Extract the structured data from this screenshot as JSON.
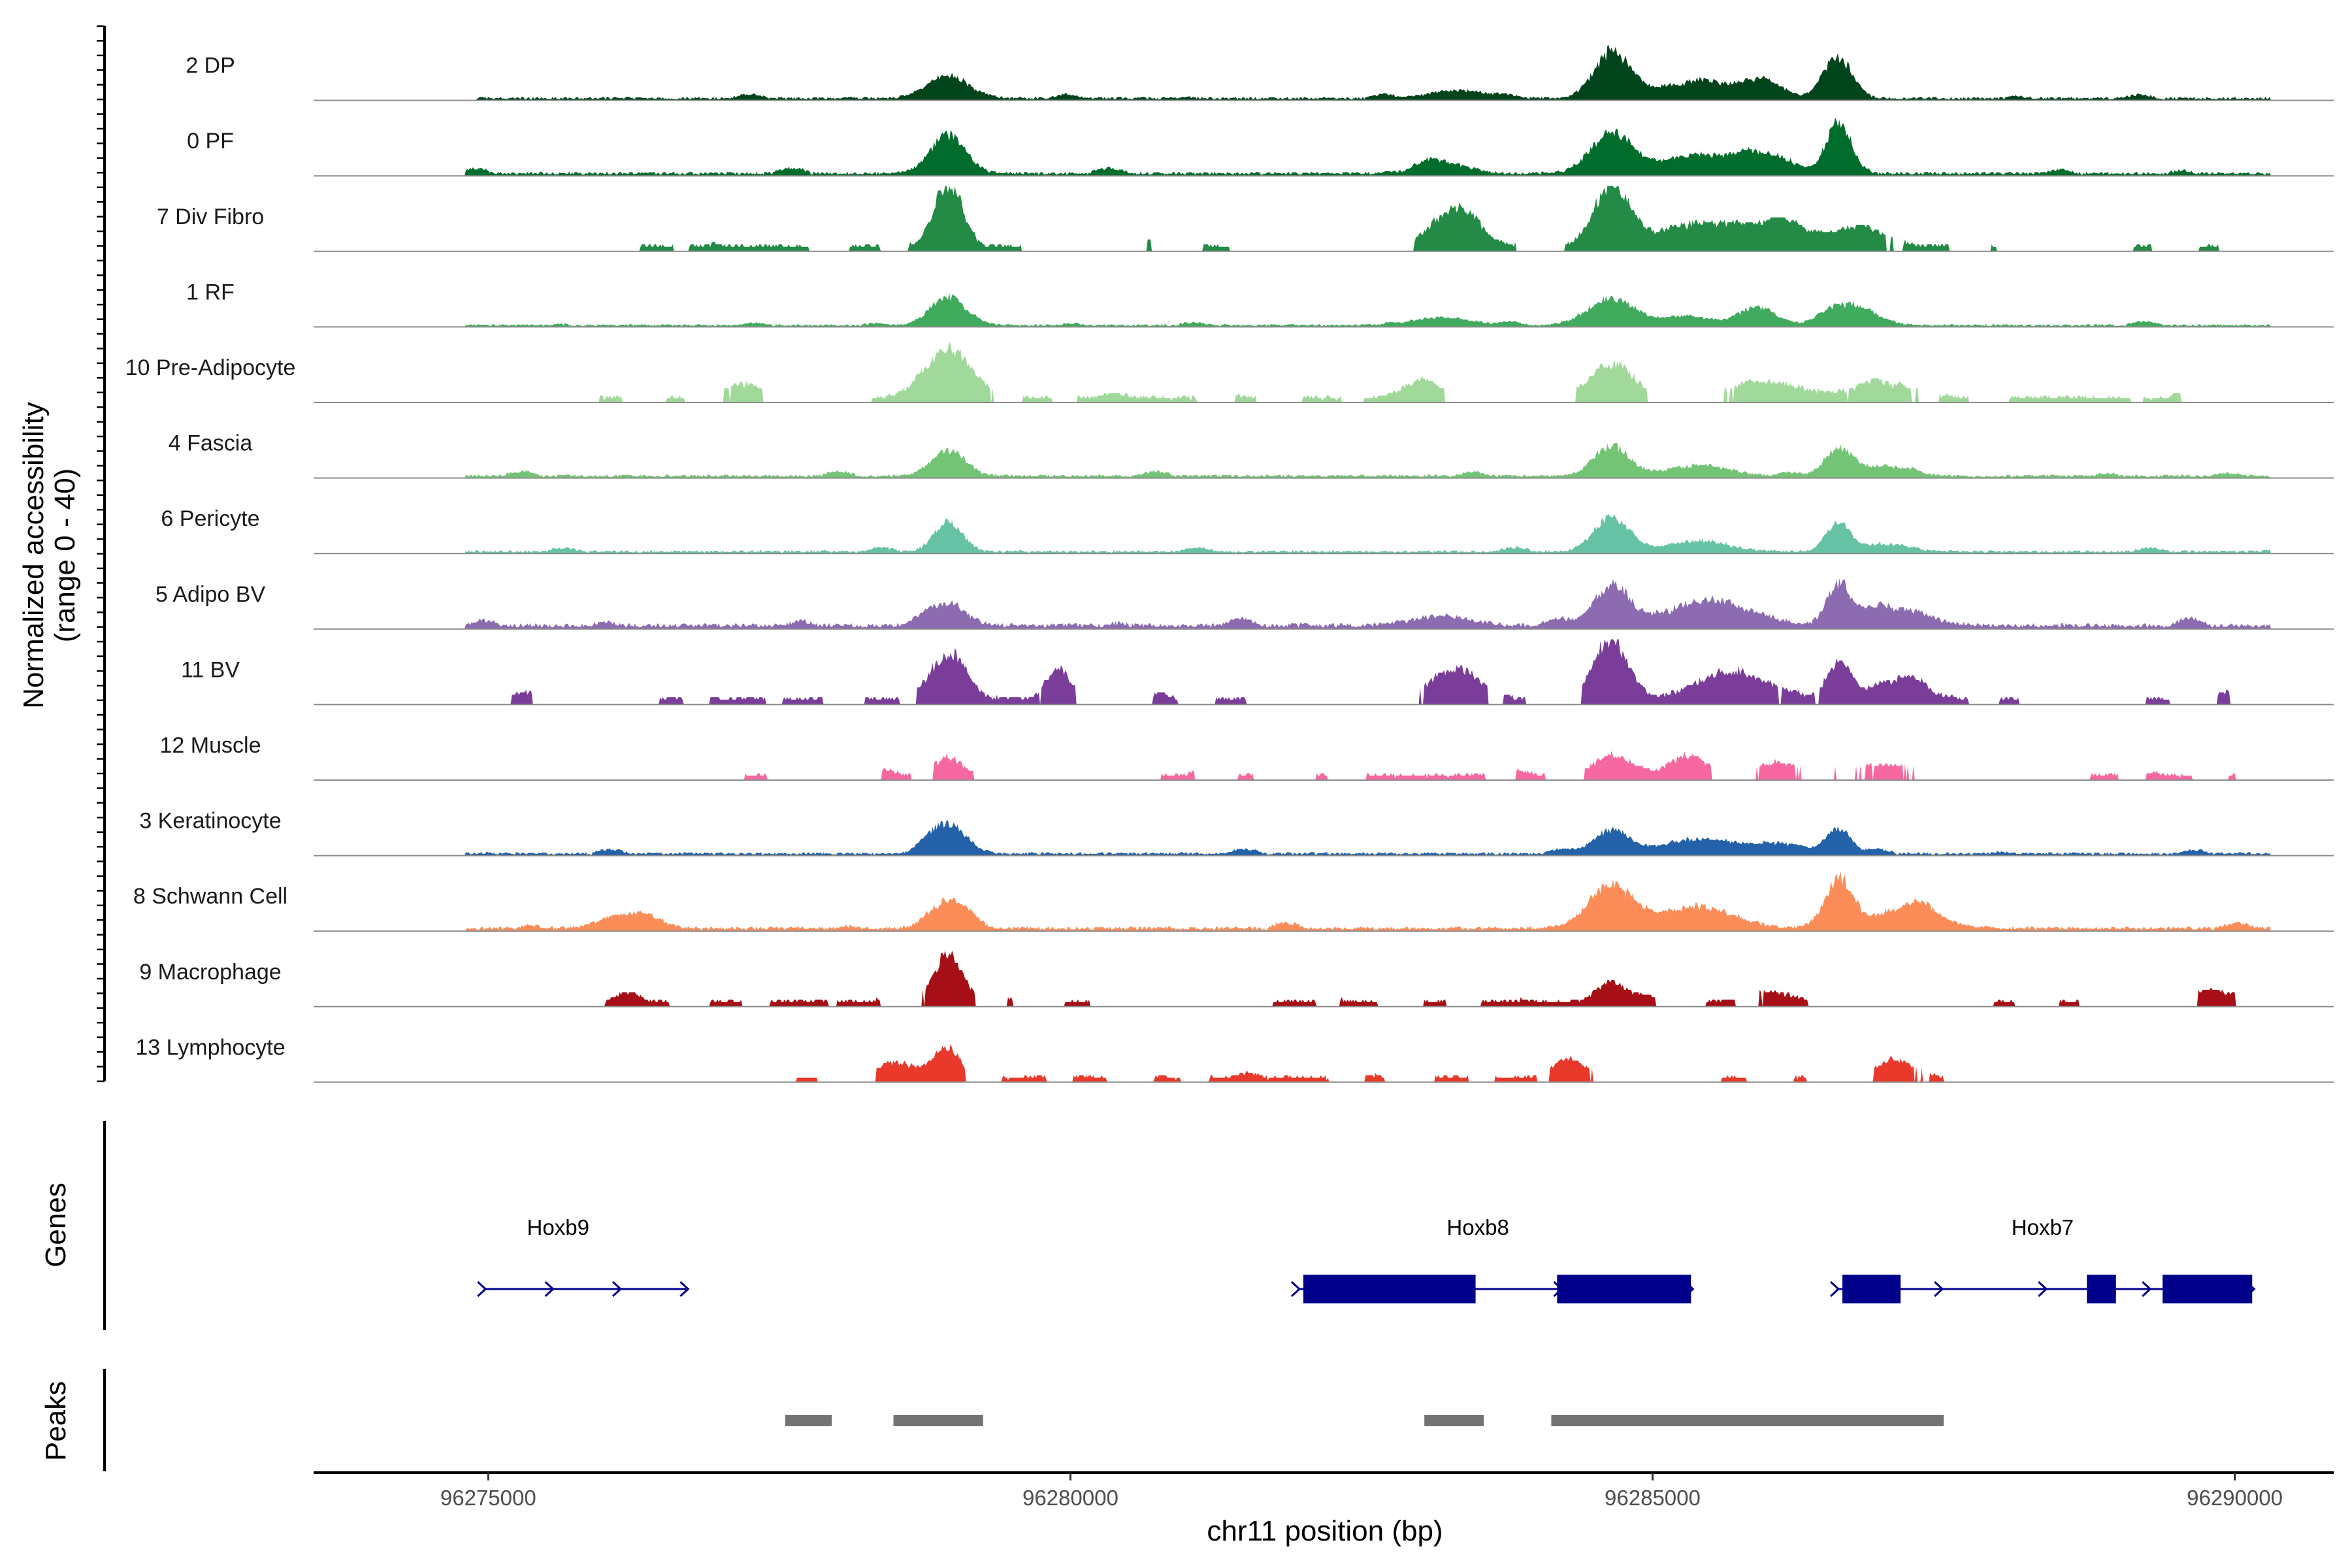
{
  "chart_data": {
    "type": "area",
    "title": "",
    "chromosome": "chr11",
    "xlabel": "chr11 position (bp)",
    "ylabel": "Normalized accessibility",
    "ylabel_range": "(range 0 - 40)",
    "ylim": [
      0,
      40
    ],
    "xlim": [
      96273500,
      96290850
    ],
    "x_ticks": [
      96275000,
      96280000,
      96285000,
      96290000
    ],
    "x_tick_labels": [
      "96275000",
      "96280000",
      "96285000",
      "96290000"
    ],
    "tracks": [
      {
        "name": "2 DP",
        "color": "#00441b",
        "start": 96274900,
        "end": 96290300,
        "base": 1.5,
        "peaks": [
          [
            96278950,
            180,
            14
          ],
          [
            96283350,
            250,
            5
          ],
          [
            96284650,
            150,
            28
          ],
          [
            96285400,
            400,
            10
          ],
          [
            96286600,
            120,
            25
          ],
          [
            96285950,
            150,
            9
          ]
        ]
      },
      {
        "name": "0 PF",
        "color": "#006d2c",
        "start": 96274800,
        "end": 96290300,
        "base": 1.8,
        "peaks": [
          [
            96278950,
            150,
            24
          ],
          [
            96283200,
            200,
            7
          ],
          [
            96284650,
            180,
            25
          ],
          [
            96285400,
            300,
            12
          ],
          [
            96286000,
            200,
            11
          ],
          [
            96286600,
            100,
            34
          ]
        ]
      },
      {
        "name": "7 Div Fibro",
        "color": "#238b45",
        "start": 96276100,
        "end": 96290300,
        "base": 2.2,
        "gappy": true,
        "peaks": [
          [
            96278950,
            120,
            40
          ],
          [
            96283300,
            200,
            22
          ],
          [
            96284650,
            150,
            38
          ],
          [
            96285400,
            350,
            14
          ],
          [
            96286100,
            300,
            12
          ],
          [
            96286800,
            200,
            12
          ]
        ]
      },
      {
        "name": "1 RF",
        "color": "#41ab5d",
        "start": 96274800,
        "end": 96290300,
        "base": 1.2,
        "peaks": [
          [
            96278950,
            150,
            18
          ],
          [
            96283200,
            250,
            5
          ],
          [
            96284650,
            200,
            17
          ],
          [
            96285900,
            150,
            12
          ],
          [
            96286700,
            200,
            13
          ],
          [
            96285300,
            200,
            6
          ]
        ]
      },
      {
        "name": "10 Pre-Adipocyte",
        "color": "#a1d99b",
        "start": 96275000,
        "end": 96290300,
        "base": 2.0,
        "gappy": true,
        "peaks": [
          [
            96278950,
            200,
            31
          ],
          [
            96284650,
            180,
            22
          ],
          [
            96283000,
            150,
            10
          ],
          [
            96286000,
            300,
            10
          ],
          [
            96287000,
            250,
            9
          ],
          [
            96277200,
            150,
            9
          ]
        ]
      },
      {
        "name": "4 Fascia",
        "color": "#74c476",
        "start": 96274800,
        "end": 96290300,
        "base": 1.5,
        "peaks": [
          [
            96278950,
            150,
            16
          ],
          [
            96284650,
            150,
            19
          ],
          [
            96285400,
            250,
            7
          ],
          [
            96286600,
            120,
            17
          ],
          [
            96287000,
            200,
            6
          ]
        ]
      },
      {
        "name": "6 Pericyte",
        "color": "#66c2a4",
        "start": 96274800,
        "end": 96290300,
        "base": 1.4,
        "peaks": [
          [
            96278950,
            120,
            18
          ],
          [
            96284650,
            150,
            22
          ],
          [
            96285400,
            250,
            7
          ],
          [
            96286600,
            100,
            16
          ],
          [
            96287000,
            200,
            5
          ]
        ]
      },
      {
        "name": "5 Adipo BV",
        "color": "#8c6bb1",
        "start": 96274800,
        "end": 96290300,
        "base": 2.5,
        "peaks": [
          [
            96278950,
            150,
            14
          ],
          [
            96284650,
            150,
            25
          ],
          [
            96285500,
            350,
            16
          ],
          [
            96286600,
            100,
            26
          ],
          [
            96287100,
            250,
            11
          ],
          [
            96283200,
            250,
            6
          ]
        ]
      },
      {
        "name": "11 BV",
        "color": "#7a3d99",
        "start": 96274800,
        "end": 96290300,
        "base": 2.5,
        "gappy": true,
        "peaks": [
          [
            96278950,
            150,
            28
          ],
          [
            96284650,
            150,
            34
          ],
          [
            96285700,
            300,
            17
          ],
          [
            96286600,
            100,
            24
          ],
          [
            96287100,
            200,
            12
          ],
          [
            96283300,
            200,
            18
          ],
          [
            96279900,
            100,
            19
          ]
        ]
      },
      {
        "name": "12 Muscle",
        "color": "#f768a1",
        "start": 96277200,
        "end": 96290000,
        "base": 2.0,
        "gappy": true,
        "peaks": [
          [
            96278950,
            120,
            11
          ],
          [
            96284650,
            150,
            13
          ],
          [
            96285300,
            150,
            13
          ],
          [
            96286100,
            200,
            8
          ],
          [
            96287000,
            250,
            7
          ]
        ]
      },
      {
        "name": "3 Keratinocyte",
        "color": "#2361a8",
        "start": 96274800,
        "end": 96290300,
        "base": 1.5,
        "peaks": [
          [
            96278950,
            150,
            19
          ],
          [
            96284650,
            150,
            15
          ],
          [
            96285400,
            300,
            9
          ],
          [
            96286600,
            100,
            15
          ],
          [
            96286100,
            250,
            6
          ]
        ]
      },
      {
        "name": "8 Schwann Cell",
        "color": "#fc8d59",
        "start": 96274800,
        "end": 96290300,
        "base": 2.0,
        "peaks": [
          [
            96278950,
            150,
            18
          ],
          [
            96276200,
            200,
            10
          ],
          [
            96284650,
            200,
            25
          ],
          [
            96285400,
            300,
            14
          ],
          [
            96286600,
            120,
            31
          ],
          [
            96287200,
            250,
            14
          ]
        ]
      },
      {
        "name": "9 Macrophage",
        "color": "#a50f15",
        "start": 96276000,
        "end": 96290000,
        "base": 2.2,
        "gappy": true,
        "peaks": [
          [
            96278950,
            120,
            30
          ],
          [
            96284650,
            120,
            13
          ],
          [
            96286000,
            200,
            6
          ],
          [
            96289800,
            200,
            7
          ],
          [
            96276200,
            100,
            6
          ]
        ]
      },
      {
        "name": "13 Lymphocyte",
        "color": "#e8392a",
        "start": 96277500,
        "end": 96287500,
        "base": 2.0,
        "gappy": true,
        "peaks": [
          [
            96278950,
            100,
            18
          ],
          [
            96284300,
            150,
            10
          ],
          [
            96287100,
            150,
            11
          ],
          [
            96278500,
            150,
            10
          ]
        ]
      }
    ],
    "genes": {
      "label": "Genes",
      "color": "#00008b",
      "items": [
        {
          "name": "Hoxb9",
          "start": 96274960,
          "end": 96276700,
          "strand": "+",
          "exons": [],
          "label_x": 96275600
        },
        {
          "name": "Hoxb8",
          "start": 96281950,
          "end": 96285330,
          "strand": "+",
          "exons": [
            [
              96282000,
              96283480
            ],
            [
              96284180,
              96285330
            ]
          ],
          "label_x": 96283500
        },
        {
          "name": "Hoxb7",
          "start": 96286580,
          "end": 96290150,
          "strand": "+",
          "exons": [
            [
              96286630,
              96287130
            ],
            [
              96288730,
              96288980
            ],
            [
              96289380,
              96290150
            ]
          ],
          "label_x": 96288350
        }
      ]
    },
    "peaks_track": {
      "label": "Peaks",
      "color": "#737373",
      "regions": [
        [
          96277550,
          96277950
        ],
        [
          96278480,
          96279250
        ],
        [
          96283040,
          96283550
        ],
        [
          96284130,
          96287500
        ]
      ]
    }
  }
}
